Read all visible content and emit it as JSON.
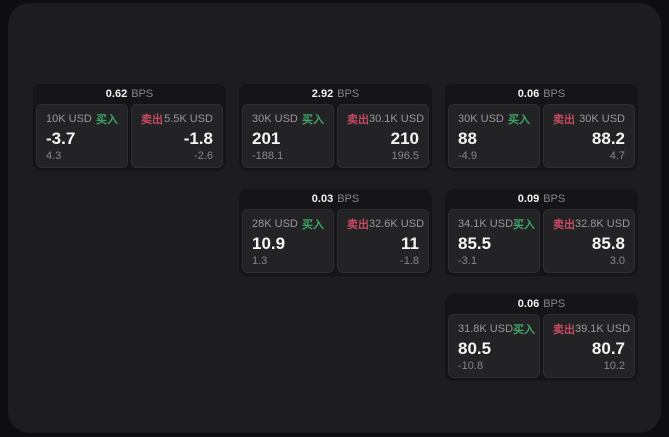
{
  "shared": {
    "bps_suffix": "BPS",
    "buy_label": "买入",
    "sell_label": "卖出"
  },
  "colors": {
    "page_background": "#0e0e10",
    "panel_background": "#1d1d1f",
    "card_background": "#151517",
    "subpanel_background": "#232326",
    "buy_green": "#3fa465",
    "sell_red": "#c34a60",
    "primary_text": "#f5f5f6",
    "secondary_text": "#98989c"
  },
  "cards": [
    {
      "bps": "0.62",
      "buy": {
        "size": "10K USD",
        "price": "-3.7",
        "change": "4.3"
      },
      "sell": {
        "size": "5.5K USD",
        "price": "-1.8",
        "change": "-2.6"
      }
    },
    {
      "bps": "2.92",
      "buy": {
        "size": "30K USD",
        "price": "201",
        "change": "-188.1"
      },
      "sell": {
        "size": "30.1K USD",
        "price": "210",
        "change": "196.5"
      }
    },
    {
      "bps": "0.06",
      "buy": {
        "size": "30K USD",
        "price": "88",
        "change": "-4.9"
      },
      "sell": {
        "size": "30K USD",
        "price": "88.2",
        "change": "4.7"
      }
    },
    {
      "bps": "0.03",
      "buy": {
        "size": "28K USD",
        "price": "10.9",
        "change": "1.3"
      },
      "sell": {
        "size": "32.6K USD",
        "price": "11",
        "change": "-1.8"
      }
    },
    {
      "bps": "0.09",
      "buy": {
        "size": "34.1K USD",
        "price": "85.5",
        "change": "-3.1"
      },
      "sell": {
        "size": "32.8K USD",
        "price": "85.8",
        "change": "3.0"
      }
    },
    {
      "bps": "0.06",
      "buy": {
        "size": "31.8K USD",
        "price": "80.5",
        "change": "-10.8"
      },
      "sell": {
        "size": "39.1K USD",
        "price": "80.7",
        "change": "10.2"
      }
    }
  ]
}
